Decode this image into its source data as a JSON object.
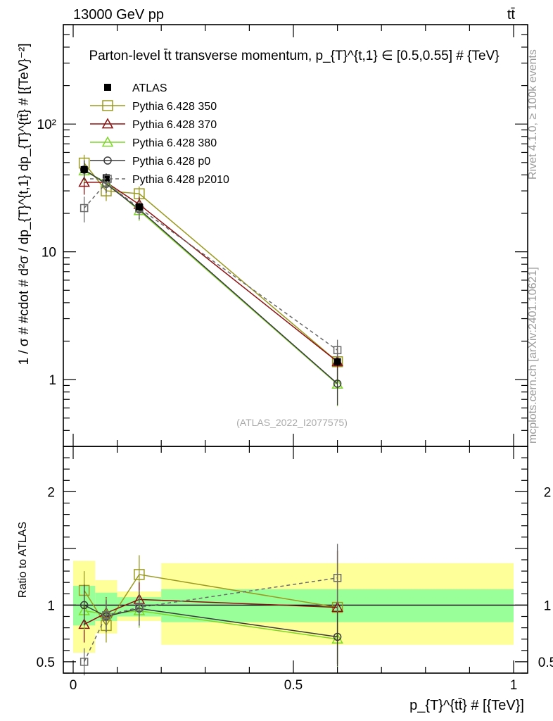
{
  "header": {
    "left": "13000 GeV pp",
    "right": "tt̄"
  },
  "side_labels": {
    "rivet": "Rivet 4.1.0, ≥ 100k events",
    "mcplots": "mcplots.cern.ch [arXiv:2401.10621]"
  },
  "colors": {
    "ATLAS": "#000000",
    "Pythia 6.428 350": "#9a9a22",
    "Pythia 6.428 370": "#8b1010",
    "Pythia 6.428 380": "#7fd62a",
    "Pythia 6.428 p0": "#3a3a3a",
    "Pythia 6.428 p2010": "#6a6a6a",
    "band_inner": "#99ff99",
    "band_outer": "#ffff99"
  },
  "chart_data": [
    {
      "type": "line",
      "title": "Parton-level t̄t transverse momentum, p_{T}^{t,1} ∈ [0.5,0.55] # {TeV}",
      "watermark": "(ATLAS_2022_I2077575)",
      "ylabel": "1 / σ # #cdot # d²σ / dp_{T}^{t,1} dp_{T}^{tt̄} # [{TeV}⁻²]",
      "xlabel": "",
      "yscale": "log",
      "ylim": [
        0.3,
        600
      ],
      "xlim": [
        -0.02,
        1.02
      ],
      "y_ticks": [
        1,
        10,
        100
      ],
      "y_tick_labels": [
        "1",
        "10",
        "10²"
      ],
      "x": [
        0.025,
        0.075,
        0.15,
        0.6
      ],
      "series": [
        {
          "name": "ATLAS",
          "marker": "filled-square",
          "values": [
            44,
            38,
            22.5,
            1.38
          ],
          "errors": [
            3,
            3,
            1.5,
            0.1
          ]
        },
        {
          "name": "Pythia 6.428 350",
          "marker": "open-square",
          "values": [
            49.5,
            30,
            28.5,
            1.38
          ],
          "errors": [
            8,
            5,
            4,
            0.4
          ]
        },
        {
          "name": "Pythia 6.428 370",
          "marker": "open-triangle",
          "values": [
            35,
            35,
            23.5,
            1.38
          ],
          "errors": [
            7,
            5,
            3.5,
            0.4
          ]
        },
        {
          "name": "Pythia 6.428 380",
          "marker": "open-triangle",
          "values": [
            43,
            35,
            21,
            0.92
          ],
          "errors": [
            8,
            5,
            3.5,
            0.3
          ]
        },
        {
          "name": "Pythia 6.428 p0",
          "marker": "open-circle",
          "values": [
            44,
            34,
            21.5,
            0.93
          ],
          "errors": [
            8,
            5,
            3.5,
            0.3
          ]
        },
        {
          "name": "Pythia 6.428 p2010",
          "marker": "open-square-dashed",
          "values": [
            22,
            34.5,
            22,
            1.7
          ],
          "errors": [
            5,
            5,
            3.5,
            0.35
          ]
        }
      ]
    },
    {
      "type": "line",
      "title": "",
      "xlabel": "p_{T}^{tt̄} # [{TeV}]",
      "ylabel": "Ratio to ATLAS",
      "ylim": [
        0.4,
        2.4
      ],
      "xlim": [
        -0.02,
        1.02
      ],
      "y_ticks": [
        0.5,
        1,
        2
      ],
      "y_tick_labels": [
        "0.5",
        "1",
        "2"
      ],
      "x_ticks": [
        0,
        0.5,
        1
      ],
      "x_tick_labels": [
        "0",
        "0.5",
        "1"
      ],
      "bins": [
        [
          0,
          0.05
        ],
        [
          0.05,
          0.1
        ],
        [
          0.1,
          0.2
        ],
        [
          0.2,
          1.0
        ]
      ],
      "band_inner": [
        [
          0.82,
          1.17
        ],
        [
          0.86,
          1.11
        ],
        [
          0.9,
          1.07
        ],
        [
          0.85,
          1.14
        ]
      ],
      "band_outer": [
        [
          0.58,
          1.39
        ],
        [
          0.75,
          1.22
        ],
        [
          0.86,
          1.12
        ],
        [
          0.65,
          1.37
        ]
      ],
      "x": [
        0.025,
        0.075,
        0.15,
        0.6
      ],
      "series": [
        {
          "name": "Pythia 6.428 350",
          "values": [
            1.13,
            0.82,
            1.27,
            0.98
          ],
          "errors": [
            0.17,
            0.15,
            0.17,
            0.5
          ]
        },
        {
          "name": "Pythia 6.428 370",
          "values": [
            0.83,
            0.93,
            1.05,
            0.98
          ],
          "errors": [
            0.16,
            0.14,
            0.15,
            0.5
          ]
        },
        {
          "name": "Pythia 6.428 380",
          "values": [
            0.95,
            0.92,
            0.95,
            0.7
          ],
          "errors": [
            0.17,
            0.14,
            0.15,
            0.25
          ]
        },
        {
          "name": "Pythia 6.428 p0",
          "values": [
            1.0,
            0.9,
            0.97,
            0.72
          ],
          "errors": [
            0.18,
            0.14,
            0.15,
            0.26
          ]
        },
        {
          "name": "Pythia 6.428 p2010",
          "values": [
            0.5,
            0.91,
            0.98,
            1.24
          ],
          "errors": [
            0.12,
            0.14,
            0.15,
            0.3
          ]
        }
      ]
    }
  ]
}
